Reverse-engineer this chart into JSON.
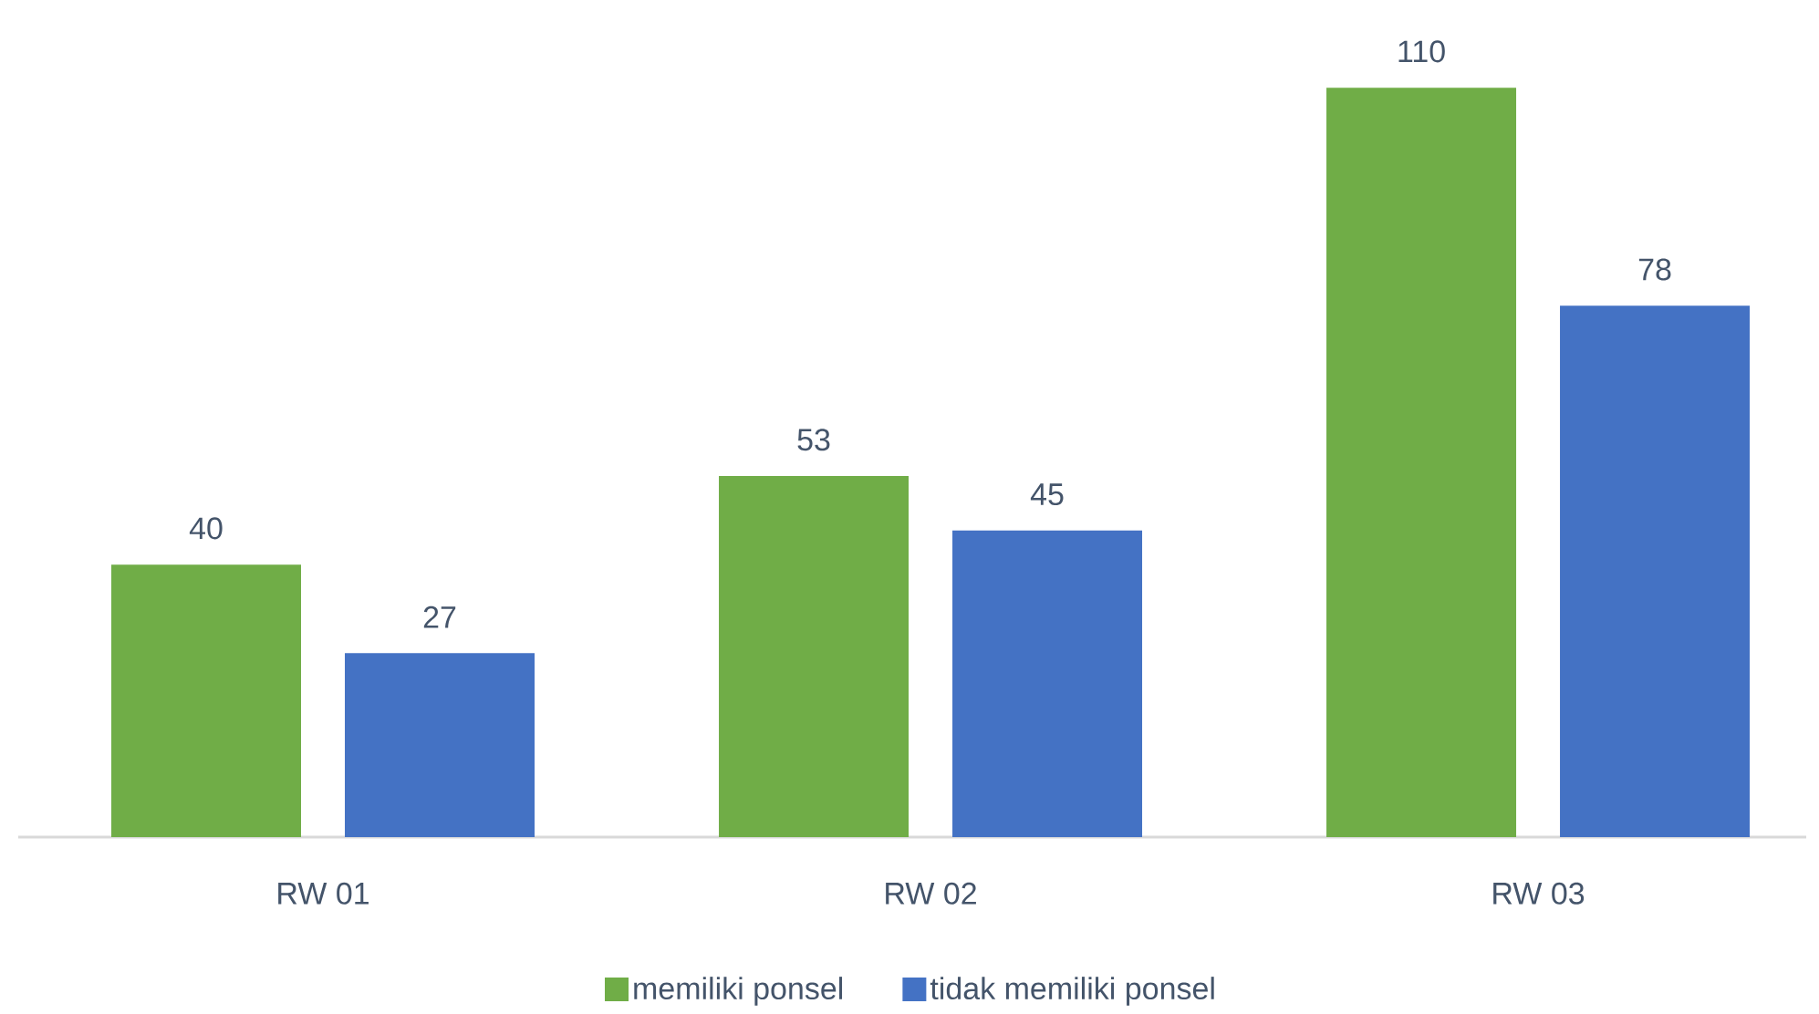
{
  "chart_data": {
    "type": "bar",
    "categories": [
      "RW 01",
      "RW 02",
      "RW 03"
    ],
    "series": [
      {
        "name": "memiliki ponsel",
        "color": "#70ad47",
        "values": [
          40,
          53,
          110
        ]
      },
      {
        "name": "tidak memiliki ponsel",
        "color": "#4472c4",
        "values": [
          27,
          45,
          78
        ]
      }
    ],
    "data_labels": true,
    "legend": "bottom"
  }
}
